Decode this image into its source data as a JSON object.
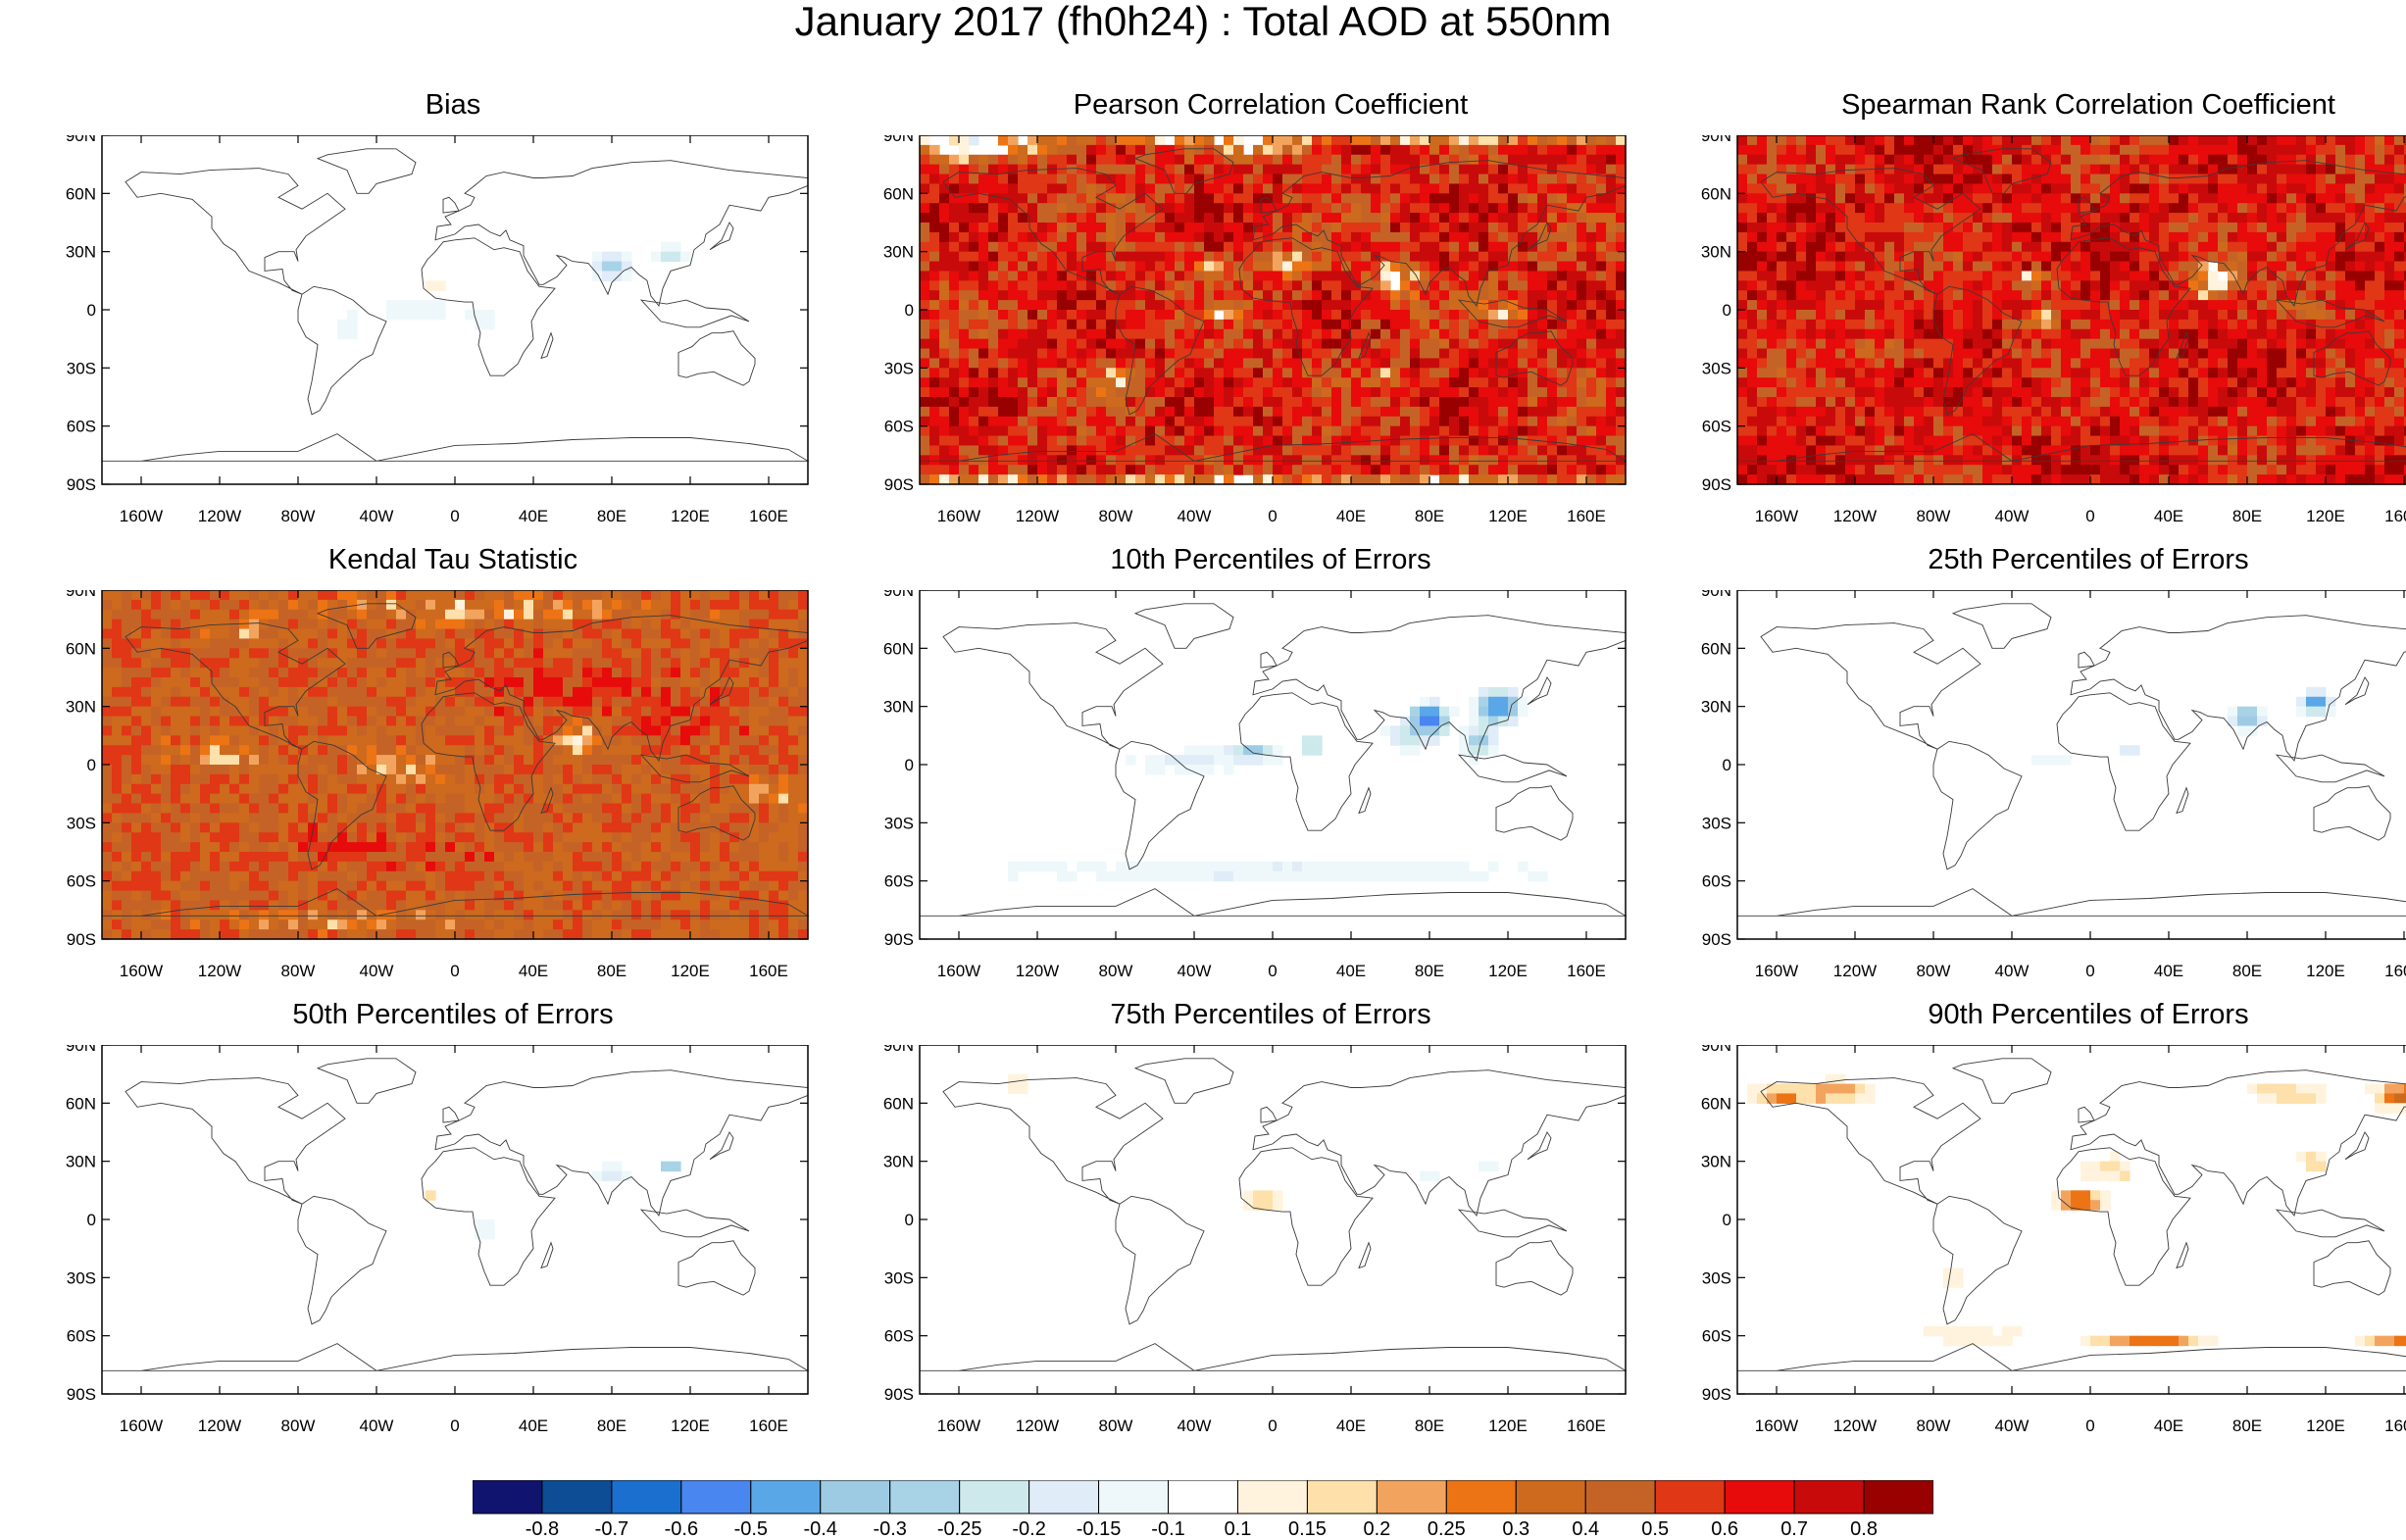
{
  "title": "January 2017 (fh0h24) : Total AOD at 550nm",
  "lat_labels": [
    "90N",
    "60N",
    "30N",
    "0",
    "30S",
    "60S",
    "90S"
  ],
  "lon_labels": [
    "160W",
    "120W",
    "80W",
    "40W",
    "0",
    "40E",
    "80E",
    "120E",
    "160E"
  ],
  "colorbar": {
    "colors": [
      "#10146e",
      "#0d4d96",
      "#1a6fcf",
      "#4a86f0",
      "#5aa7e8",
      "#9ecbe4",
      "#a8d3e6",
      "#cde9ec",
      "#e0ecf8",
      "#eef8fb",
      "#ffffff",
      "#fff3dd",
      "#fde0aa",
      "#f2a45e",
      "#ec7414",
      "#cd6a1d",
      "#c56327",
      "#e03716",
      "#e70b0b",
      "#c90a0a",
      "#990000"
    ],
    "labels": [
      "-0.8",
      "-0.7",
      "-0.6",
      "-0.5",
      "-0.4",
      "-0.3",
      "-0.25",
      "-0.2",
      "-0.15",
      "-0.1",
      "0.1",
      "0.15",
      "0.2",
      "0.25",
      "0.3",
      "0.4",
      "0.5",
      "0.6",
      "0.7",
      "0.8"
    ]
  },
  "chart_data": [
    {
      "type": "heatmap",
      "title": "Bias",
      "field": "mostly near zero; weak negative (light blue) over South/East Asia, tropical Atlantic and South America; slight positive over West Africa"
    },
    {
      "type": "heatmap",
      "title": "Pearson Correlation Coefficient",
      "field": "strong positive (0.5-0.8) over most of the globe; low values over Sahara, Arabian Sea, tropical Atlantic and polar regions"
    },
    {
      "type": "heatmap",
      "title": "Spearman Rank Correlation Coefficient",
      "field": "strong positive (0.5-0.8) over most of the globe; low values over tropical oceans near Africa and India"
    },
    {
      "type": "heatmap",
      "title": "Kendal Tau Statistic",
      "field": "moderate positive (0.4-0.6) globally; higher over northern mid-latitudes; low over tropics and high latitudes"
    },
    {
      "type": "heatmap",
      "title": "10th Percentiles of Errors",
      "field": "negative errors, strongest over India and East China (down to -0.6); weak negative over tropical Atlantic and Southern Ocean"
    },
    {
      "type": "heatmap",
      "title": "25th Percentiles of Errors",
      "field": "negative over India and East China; weak negative over tropical Atlantic"
    },
    {
      "type": "heatmap",
      "title": "50th Percentiles of Errors",
      "field": "near zero; weak negative over South Asia; slight positive over West Africa"
    },
    {
      "type": "heatmap",
      "title": "75th Percentiles of Errors",
      "field": "slight positive over West Africa; weak negative over India and China"
    },
    {
      "type": "heatmap",
      "title": "90th Percentiles of Errors",
      "field": "positive errors over West Africa, East Asia, Alaska/Canada, Siberia and Southern Ocean"
    }
  ]
}
